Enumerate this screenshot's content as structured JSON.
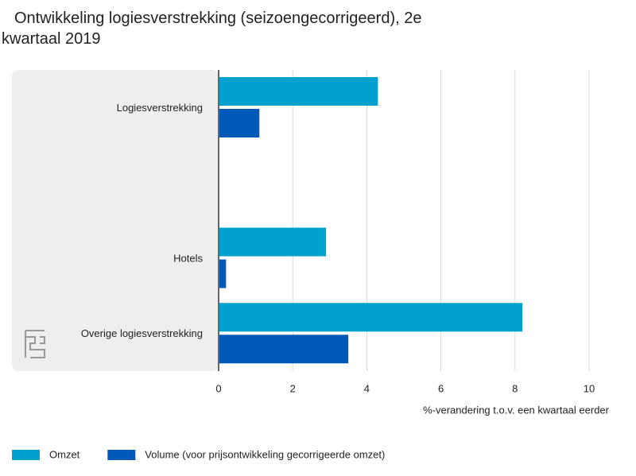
{
  "chart_data": {
    "type": "barh",
    "title": "Ontwikkeling logiesverstrekking (seizoengecorrigeerd), 2e kwartaal 2019",
    "x_label": "%-verandering t.o.v. een kwartaal eerder",
    "categories": [
      "Logiesverstrekking",
      null,
      "Hotels",
      "Overige logiesverstrekking"
    ],
    "series": [
      {
        "name": "Omzet",
        "color": "#00a1cd",
        "values": [
          4.3,
          null,
          2.9,
          8.2
        ]
      },
      {
        "name": "Volume (voor prijsontwikkeling gecorrigeerde omzet)",
        "color": "#0058b8",
        "values": [
          1.1,
          null,
          0.2,
          3.5
        ]
      }
    ],
    "xlim": [
      0,
      10
    ],
    "xticks": [
      0,
      2,
      4,
      6,
      8,
      10
    ],
    "grid": true,
    "legend": "bottom"
  }
}
